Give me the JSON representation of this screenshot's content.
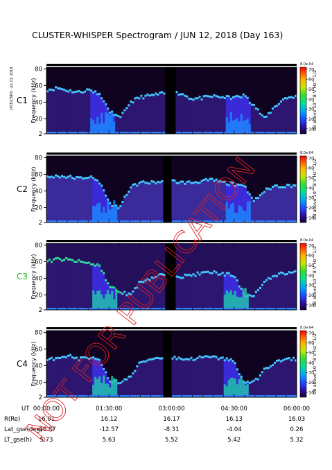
{
  "title": "CLUSTER-WHISPER Spectrogram / JUN 12, 2018 (Day 163)",
  "side_note": "LPCE/CNRS - Jul 23, 2018",
  "watermark": "NOT FOR PUBLICATION",
  "chart_data": {
    "type": "heatmap",
    "y_axis_label": "Frequency (kHz)",
    "y_ticks": [
      2,
      20,
      40,
      60,
      80
    ],
    "ylim": [
      2,
      82
    ],
    "colorbar": {
      "label": "dB above 10^-8 V Hz^-1/2",
      "label_top": "8.0e-04",
      "ticks": [
        10,
        20,
        30,
        40,
        50,
        60,
        70
      ],
      "range": [
        5,
        72
      ]
    },
    "x_label_rows": [
      {
        "label": "UT",
        "values": [
          "00:00:00",
          "01:30:00",
          "03:00:00",
          "04:30:00",
          "06:00:00"
        ]
      },
      {
        "label": "R(Re)",
        "values": [
          "16.01",
          "16.12",
          "16.17",
          "16.13",
          "16.03"
        ]
      },
      {
        "label": "Lat_gse(deg)",
        "values": [
          "-16.87",
          "-12.57",
          "-8.31",
          "-4.04",
          "0.26"
        ]
      },
      {
        "label": "LT_gse(h)",
        "values": [
          "5.73",
          "5.63",
          "5.52",
          "5.42",
          "5.32"
        ]
      }
    ],
    "x_range_hours": [
      0,
      6
    ],
    "panels": [
      {
        "name": "C1",
        "name_color": "#000000",
        "gap_hours": [
          2.85,
          3.1
        ],
        "cutoff_khz": [
          55,
          57,
          54,
          52,
          55,
          50,
          30,
          20,
          40,
          46,
          48,
          50,
          52,
          50,
          44,
          45,
          47,
          46,
          45,
          48,
          36,
          20,
          35,
          45,
          47
        ],
        "dip_center_hours": [
          1.35,
          4.6
        ]
      },
      {
        "name": "C2",
        "name_color": "#000000",
        "gap_hours": [
          2.8,
          3.0
        ],
        "cutoff_khz": [
          56,
          58,
          57,
          55,
          57,
          52,
          24,
          20,
          44,
          50,
          50,
          51,
          52,
          50,
          50,
          52,
          53,
          50,
          48,
          47,
          28,
          40,
          46,
          46,
          47
        ],
        "dip_center_hours": [
          1.4,
          4.6
        ]
      },
      {
        "name": "C3",
        "name_color": "#22bb22",
        "gap_hours": [
          2.85,
          3.1
        ],
        "cutoff_khz": [
          60,
          63,
          62,
          60,
          58,
          56,
          30,
          24,
          20,
          36,
          40,
          44,
          46,
          42,
          44,
          46,
          47,
          45,
          44,
          20,
          20,
          35,
          44,
          46,
          48
        ],
        "dip_center_hours": [
          1.4,
          4.55
        ]
      },
      {
        "name": "C4",
        "name_color": "#000000",
        "gap_hours": [
          2.8,
          3.0
        ],
        "cutoff_khz": [
          46,
          50,
          52,
          48,
          50,
          46,
          22,
          20,
          26,
          44,
          48,
          50,
          50,
          48,
          48,
          50,
          50,
          48,
          46,
          20,
          20,
          35,
          44,
          47,
          48
        ],
        "dip_center_hours": [
          1.4,
          4.55
        ]
      }
    ]
  }
}
